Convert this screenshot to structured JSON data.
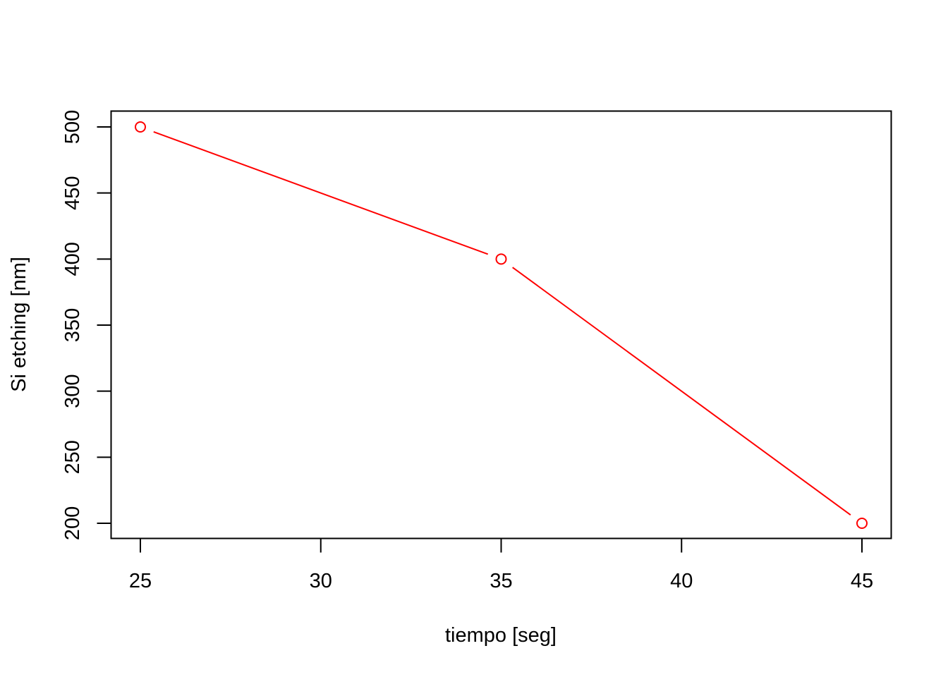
{
  "chart_data": {
    "type": "line",
    "title": "",
    "xlabel": "tiempo [seg]",
    "ylabel": "Si etching [nm]",
    "x": [
      25,
      35,
      45
    ],
    "series": [
      {
        "values": [
          500,
          400,
          200
        ],
        "color": "#ff0000",
        "marker": "open-circle",
        "line_style": "solid"
      }
    ],
    "xlim": [
      25,
      45
    ],
    "ylim": [
      200,
      500
    ],
    "x_ticks": [
      25,
      30,
      35,
      40,
      45
    ],
    "x_tick_labels": [
      "25",
      "30",
      "35",
      "40",
      "45"
    ],
    "y_ticks": [
      200,
      250,
      300,
      350,
      400,
      450,
      500
    ],
    "y_tick_labels": [
      "200",
      "250",
      "300",
      "350",
      "400",
      "450",
      "500"
    ],
    "grid": false,
    "legend": "none"
  }
}
